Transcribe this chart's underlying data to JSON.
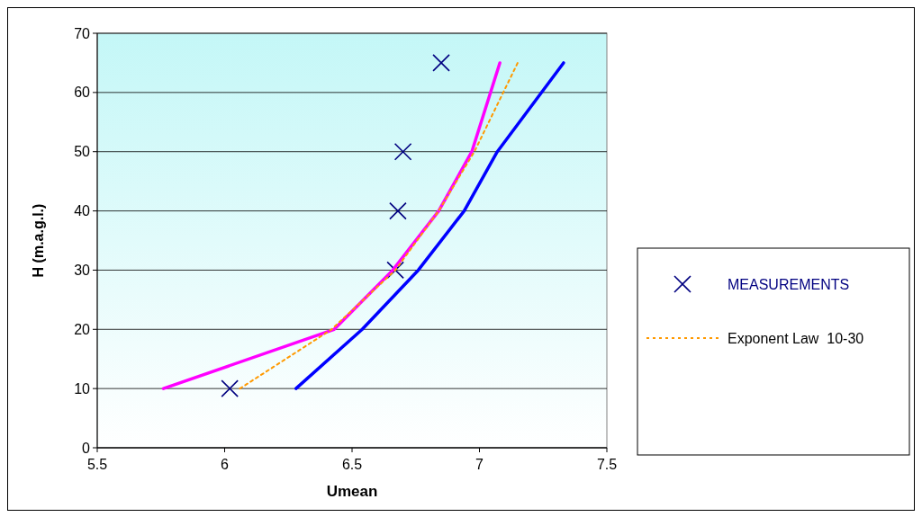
{
  "chart_data": {
    "type": "line",
    "xlabel": "Umean",
    "ylabel": "H (m.a.g.l.)",
    "xlim": [
      5.5,
      7.5
    ],
    "xticks": [
      5.5,
      6,
      6.5,
      7,
      7.5
    ],
    "ylim": [
      0,
      70
    ],
    "yticks": [
      0,
      10,
      20,
      30,
      40,
      50,
      60,
      70
    ],
    "grid": "y",
    "legend": "right",
    "series": [
      {
        "name": "MEASUREMENTS",
        "type": "scatter",
        "marker": "cross",
        "color": "#000080",
        "x": [
          6.02,
          6.67,
          6.68,
          6.7,
          6.85
        ],
        "values": [
          10,
          30,
          40,
          50,
          65
        ]
      },
      {
        "color": "#ff00ff",
        "x": [
          5.76,
          6.43,
          6.66,
          6.84,
          6.97,
          7.08
        ],
        "values": [
          10,
          20,
          30,
          40,
          50,
          65
        ]
      },
      {
        "name": "Exponent Law  10-30",
        "color": "#ff9900",
        "line_style": "dotted",
        "x": [
          6.06,
          6.42,
          6.67,
          6.84,
          6.98,
          7.15
        ],
        "values": [
          10,
          20,
          30,
          40,
          50,
          65
        ]
      },
      {
        "color": "#0000ff",
        "x": [
          6.28,
          6.54,
          6.76,
          6.94,
          7.07,
          7.33
        ],
        "values": [
          10,
          20,
          30,
          40,
          50,
          65
        ]
      }
    ]
  }
}
